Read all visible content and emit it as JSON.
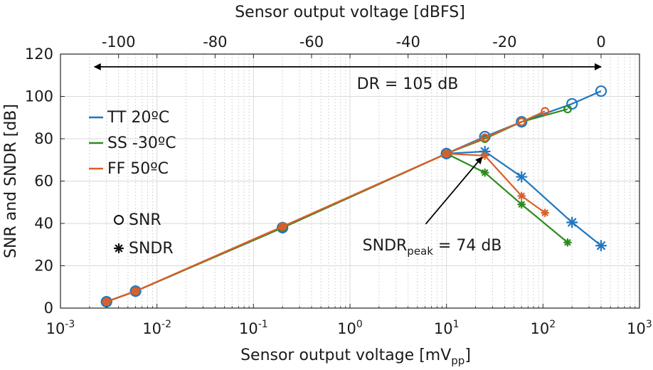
{
  "chart_data": {
    "type": "line",
    "xlabel": "Sensor output voltage [mV",
    "xlabel_sub": "pp",
    "xlabel_close": "]",
    "ylabel": "SNR and SNDR [dB]",
    "top_xlabel": "Sensor output voltage [dBFS]",
    "x_scale": "log",
    "xlim": [
      0.001,
      1000
    ],
    "ylim": [
      0,
      120
    ],
    "x_ticks": [
      {
        "base": "10",
        "exp": "-3",
        "value": 0.001
      },
      {
        "base": "10",
        "exp": "-2",
        "value": 0.01
      },
      {
        "base": "10",
        "exp": "-1",
        "value": 0.1
      },
      {
        "base": "10",
        "exp": "0",
        "value": 1
      },
      {
        "base": "10",
        "exp": "1",
        "value": 10
      },
      {
        "base": "10",
        "exp": "2",
        "value": 100
      },
      {
        "base": "10",
        "exp": "3",
        "value": 1000
      }
    ],
    "y_ticks": [
      "0",
      "20",
      "40",
      "60",
      "80",
      "100",
      "120"
    ],
    "top_ticks": [
      {
        "label": "-100",
        "value": -100
      },
      {
        "label": "-80",
        "value": -80
      },
      {
        "label": "-60",
        "value": -60
      },
      {
        "label": "-40",
        "value": -40
      },
      {
        "label": "-20",
        "value": -20
      },
      {
        "label": "0",
        "value": 0
      }
    ],
    "top_axis_full_scale_mVpp": 400,
    "grid": true,
    "legend_placement": "left",
    "series": [
      {
        "name": "TT 20ºC",
        "color": "#1f77c0",
        "snr": {
          "x": [
            0.003,
            0.006,
            0.2,
            10,
            25,
            60,
            200,
            400
          ],
          "y": [
            3,
            8,
            38,
            73,
            81,
            88,
            96.5,
            102.5
          ]
        },
        "sndr": {
          "x": [
            0.003,
            0.006,
            0.2,
            10,
            25,
            60,
            200,
            400
          ],
          "y": [
            3,
            8,
            38,
            73,
            74,
            62,
            40.5,
            29.5
          ]
        }
      },
      {
        "name": "SS -30ºC",
        "color": "#2e8b1f",
        "snr": {
          "x": [
            0.003,
            0.006,
            0.2,
            10,
            25,
            60,
            180
          ],
          "y": [
            3,
            8,
            38,
            73,
            80,
            88,
            94
          ]
        },
        "sndr": {
          "x": [
            0.003,
            0.006,
            0.2,
            10,
            25,
            60,
            180
          ],
          "y": [
            3,
            8,
            38,
            73,
            64,
            49,
            31
          ]
        }
      },
      {
        "name": "FF 50ºC",
        "color": "#d95f2b",
        "snr": {
          "x": [
            0.003,
            0.006,
            0.2,
            10,
            25,
            60,
            105
          ],
          "y": [
            3,
            8,
            38.5,
            73,
            80.5,
            88,
            93
          ]
        },
        "sndr": {
          "x": [
            0.003,
            0.006,
            0.2,
            10,
            25,
            60,
            105
          ],
          "y": [
            3,
            8,
            38.5,
            73,
            72,
            53,
            45
          ]
        }
      }
    ],
    "marker_legend": [
      {
        "label": "SNR",
        "marker": "circle"
      },
      {
        "label": "SNDR",
        "marker": "asterisk"
      }
    ],
    "annotations": {
      "dr": {
        "text": "DR = 105 dB",
        "y": 114,
        "x_from_dBFS": -105,
        "x_to_dBFS": 0
      },
      "peak": {
        "text_main": "SNDR",
        "text_sub": "peak",
        "text_rest": " = 74 dB",
        "arrow_to": {
          "x": 25,
          "y": 74
        },
        "text_x": 9.5,
        "text_y": 31
      }
    }
  }
}
